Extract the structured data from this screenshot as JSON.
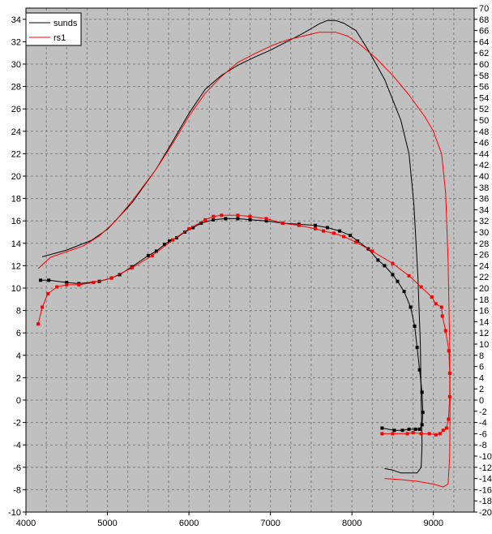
{
  "chart_data": {
    "type": "line",
    "title": "",
    "xlabel": "",
    "ylabel": "",
    "xlim": [
      4000,
      9500
    ],
    "ylim": [
      -10,
      35
    ],
    "y2lim": [
      -20,
      70
    ],
    "xticks": [
      4000,
      5000,
      6000,
      7000,
      8000,
      9000
    ],
    "yticks": [
      -10,
      -8,
      -6,
      -4,
      -2,
      0,
      2,
      4,
      6,
      8,
      10,
      12,
      14,
      16,
      18,
      20,
      22,
      24,
      26,
      28,
      30,
      32,
      34
    ],
    "y2ticks": [
      -20,
      -18,
      -16,
      -14,
      -12,
      -10,
      -8,
      -6,
      -4,
      -2,
      0,
      2,
      4,
      6,
      8,
      10,
      12,
      14,
      16,
      18,
      20,
      22,
      24,
      26,
      28,
      30,
      32,
      34,
      36,
      38,
      40,
      42,
      44,
      46,
      48,
      50,
      52,
      54,
      56,
      58,
      60,
      62,
      64,
      66,
      68,
      70
    ],
    "grid": true,
    "legend_position": "top-left",
    "background": "#c0c0c0",
    "series": [
      {
        "name": "sunds",
        "color": "#000000",
        "markers": false,
        "axis": "right",
        "points": [
          [
            4200,
            25.6
          ],
          [
            4500,
            26.8
          ],
          [
            4800,
            28.5
          ],
          [
            5000,
            30.5
          ],
          [
            5300,
            35.2
          ],
          [
            5600,
            41.3
          ],
          [
            5800,
            46.2
          ],
          [
            6000,
            51.2
          ],
          [
            6200,
            55.5
          ],
          [
            6400,
            58.0
          ],
          [
            6600,
            59.8
          ],
          [
            6800,
            61.2
          ],
          [
            7000,
            62.5
          ],
          [
            7200,
            64.0
          ],
          [
            7400,
            65.5
          ],
          [
            7600,
            67.2
          ],
          [
            7700,
            67.8
          ],
          [
            7800,
            67.8
          ],
          [
            7900,
            67.3
          ],
          [
            8050,
            66.0
          ],
          [
            8200,
            62.5
          ],
          [
            8400,
            57.3
          ],
          [
            8600,
            50.0
          ],
          [
            8700,
            44.0
          ],
          [
            8760,
            35.0
          ],
          [
            8810,
            22.0
          ],
          [
            8840,
            10.0
          ],
          [
            8850,
            0.0
          ],
          [
            8860,
            -8.0
          ],
          [
            8850,
            -12.0
          ],
          [
            8800,
            -13.0
          ],
          [
            8600,
            -13.0
          ],
          [
            8500,
            -12.5
          ],
          [
            8400,
            -12.2
          ]
        ]
      },
      {
        "name": "rs1",
        "color": "#ff0000",
        "markers": false,
        "axis": "right",
        "points": [
          [
            4150,
            23.5
          ],
          [
            4300,
            25.5
          ],
          [
            4500,
            26.5
          ],
          [
            4700,
            27.5
          ],
          [
            4900,
            29.3
          ],
          [
            5100,
            32.0
          ],
          [
            5300,
            35.5
          ],
          [
            5600,
            41.3
          ],
          [
            5800,
            45.8
          ],
          [
            6000,
            50.7
          ],
          [
            6200,
            54.8
          ],
          [
            6400,
            57.8
          ],
          [
            6600,
            60.3
          ],
          [
            6800,
            61.8
          ],
          [
            7000,
            63.2
          ],
          [
            7200,
            64.3
          ],
          [
            7400,
            65.0
          ],
          [
            7600,
            65.7
          ],
          [
            7800,
            65.7
          ],
          [
            7950,
            65.0
          ],
          [
            8100,
            63.5
          ],
          [
            8300,
            61.0
          ],
          [
            8500,
            58.0
          ],
          [
            8700,
            54.5
          ],
          [
            8900,
            50.5
          ],
          [
            9000,
            48.0
          ],
          [
            9100,
            44.0
          ],
          [
            9150,
            37.0
          ],
          [
            9180,
            25.0
          ],
          [
            9200,
            10.0
          ],
          [
            9205,
            0.0
          ],
          [
            9200,
            -10.0
          ],
          [
            9180,
            -15.0
          ],
          [
            9120,
            -15.5
          ],
          [
            9000,
            -15.0
          ],
          [
            8800,
            -14.5
          ],
          [
            8600,
            -14.2
          ],
          [
            8400,
            -14.0
          ]
        ]
      },
      {
        "name": "sunds",
        "color": "#000000",
        "markers": true,
        "axis": "left",
        "points": [
          [
            4180,
            10.7
          ],
          [
            4280,
            10.7
          ],
          [
            4500,
            10.5
          ],
          [
            4650,
            10.4
          ],
          [
            4900,
            10.6
          ],
          [
            5050,
            10.9
          ],
          [
            5150,
            11.2
          ],
          [
            5300,
            11.9
          ],
          [
            5500,
            12.9
          ],
          [
            5600,
            13.3
          ],
          [
            5700,
            13.9
          ],
          [
            5760,
            14.2
          ],
          [
            5850,
            14.5
          ],
          [
            5950,
            15.0
          ],
          [
            6050,
            15.4
          ],
          [
            6150,
            15.8
          ],
          [
            6300,
            16.1
          ],
          [
            6450,
            16.2
          ],
          [
            6600,
            16.2
          ],
          [
            6750,
            16.1
          ],
          [
            6950,
            16.0
          ],
          [
            7150,
            15.8
          ],
          [
            7350,
            15.7
          ],
          [
            7550,
            15.6
          ],
          [
            7700,
            15.4
          ],
          [
            7850,
            15.1
          ],
          [
            7980,
            14.7
          ],
          [
            8070,
            14.2
          ],
          [
            8200,
            13.5
          ],
          [
            8320,
            12.5
          ],
          [
            8400,
            12.0
          ],
          [
            8500,
            11.2
          ],
          [
            8560,
            10.6
          ],
          [
            8640,
            9.7
          ],
          [
            8720,
            8.3
          ],
          [
            8770,
            6.6
          ],
          [
            8800,
            4.7
          ],
          [
            8830,
            2.7
          ],
          [
            8860,
            0.7
          ],
          [
            8870,
            -1.1
          ],
          [
            8860,
            -2.2
          ],
          [
            8830,
            -2.6
          ],
          [
            8780,
            -2.6
          ],
          [
            8700,
            -2.6
          ],
          [
            8620,
            -2.7
          ],
          [
            8520,
            -2.7
          ],
          [
            8370,
            -2.5
          ]
        ]
      },
      {
        "name": "rs1",
        "color": "#ff0000",
        "markers": true,
        "axis": "left",
        "points": [
          [
            4150,
            6.8
          ],
          [
            4200,
            8.3
          ],
          [
            4270,
            9.5
          ],
          [
            4380,
            10.1
          ],
          [
            4500,
            10.3
          ],
          [
            4650,
            10.3
          ],
          [
            4830,
            10.5
          ],
          [
            5050,
            10.9
          ],
          [
            5300,
            11.8
          ],
          [
            5550,
            12.9
          ],
          [
            5800,
            14.3
          ],
          [
            6000,
            15.3
          ],
          [
            6200,
            16.1
          ],
          [
            6300,
            16.4
          ],
          [
            6400,
            16.5
          ],
          [
            6600,
            16.5
          ],
          [
            6750,
            16.4
          ],
          [
            6950,
            16.2
          ],
          [
            7150,
            15.8
          ],
          [
            7350,
            15.6
          ],
          [
            7550,
            15.3
          ],
          [
            7650,
            15.1
          ],
          [
            7780,
            14.9
          ],
          [
            7900,
            14.6
          ],
          [
            8050,
            14.1
          ],
          [
            8250,
            13.3
          ],
          [
            8500,
            12.2
          ],
          [
            8700,
            11.1
          ],
          [
            8850,
            10.1
          ],
          [
            8980,
            9.2
          ],
          [
            9030,
            8.6
          ],
          [
            9100,
            8.3
          ],
          [
            9110,
            7.5
          ],
          [
            9150,
            6.2
          ],
          [
            9190,
            4.4
          ],
          [
            9200,
            2.4
          ],
          [
            9200,
            0.3
          ],
          [
            9185,
            -1.7
          ],
          [
            9160,
            -2.5
          ],
          [
            9120,
            -2.7
          ],
          [
            9080,
            -3.0
          ],
          [
            9030,
            -3.1
          ],
          [
            8950,
            -3.0
          ],
          [
            8850,
            -3.0
          ],
          [
            8750,
            -2.9
          ],
          [
            8680,
            -3.0
          ],
          [
            8500,
            -3.0
          ],
          [
            8370,
            -3.0
          ]
        ]
      }
    ]
  }
}
